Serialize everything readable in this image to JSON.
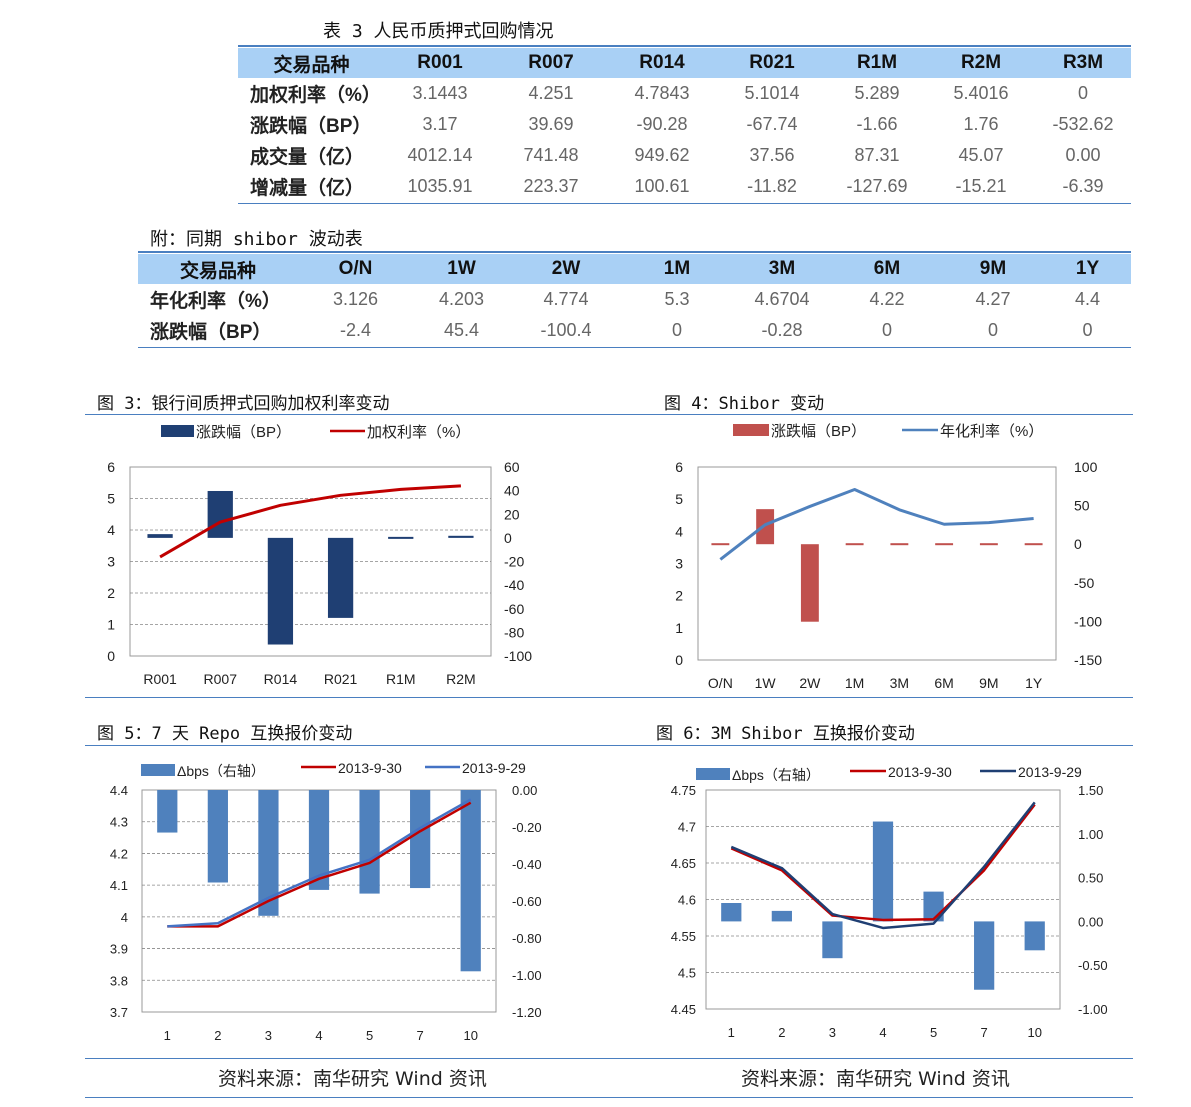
{
  "table3": {
    "caption": "表 3  人民币质押式回购情况",
    "headers": [
      "交易品种",
      "R001",
      "R007",
      "R014",
      "R021",
      "R1M",
      "R2M",
      "R3M"
    ],
    "rows": [
      [
        "加权利率（%）",
        "3.1443",
        "4.251",
        "4.7843",
        "5.1014",
        "5.289",
        "5.4016",
        "0"
      ],
      [
        "涨跌幅（BP）",
        "3.17",
        "39.69",
        "-90.28",
        "-67.74",
        "-1.66",
        "1.76",
        "-532.62"
      ],
      [
        "成交量（亿）",
        "4012.14",
        "741.48",
        "949.62",
        "37.56",
        "87.31",
        "45.07",
        "0.00"
      ],
      [
        "增减量（亿）",
        "1035.91",
        "223.37",
        "100.61",
        "-11.82",
        "-127.69",
        "-15.21",
        "-6.39"
      ]
    ]
  },
  "shibor_table": {
    "caption": "附：同期 shibor 波动表",
    "headers": [
      "交易品种",
      "O/N",
      "1W",
      "2W",
      "1M",
      "3M",
      "6M",
      "9M",
      "1Y"
    ],
    "rows": [
      [
        "年化利率（%）",
        "3.126",
        "4.203",
        "4.774",
        "5.3",
        "4.6704",
        "4.22",
        "4.27",
        "4.4"
      ],
      [
        "涨跌幅（BP）",
        "-2.4",
        "45.4",
        "-100.4",
        "0",
        "-0.28",
        "0",
        "0",
        "0"
      ]
    ]
  },
  "captions": {
    "fig3": "图 3：银行间质押式回购加权利率变动",
    "fig4": "图 4：Shibor 变动",
    "fig5": "图 5：7 天 Repo 互换报价变动",
    "fig6": "图 6：3M Shibor 互换报价变动"
  },
  "source": "资料来源：南华研究   Wind 资讯",
  "colors": {
    "header_bg": "#a9d0f5",
    "bar_navy": "#1f3f73",
    "bar_red": "#c0504d",
    "bar_blue": "#4f81bd",
    "line_red": "#c00000",
    "line_blue": "#4472c4"
  },
  "chart_data": [
    {
      "id": "fig3",
      "type": "bar+line",
      "categories": [
        "R001",
        "R007",
        "R014",
        "R021",
        "R1M",
        "R2M"
      ],
      "bar_series": {
        "name": "涨跌幅（BP）",
        "values": [
          3.17,
          39.69,
          -90.28,
          -67.74,
          -1.66,
          1.76
        ],
        "axis": "right"
      },
      "line_series": {
        "name": "加权利率（%）",
        "values": [
          3.1443,
          4.251,
          4.7843,
          5.1014,
          5.289,
          5.4016
        ],
        "axis": "left"
      },
      "left_ticks": [
        "6",
        "5",
        "4",
        "3",
        "2",
        "1",
        "0"
      ],
      "right_ticks": [
        "60",
        "40",
        "20",
        "0",
        "-20",
        "-40",
        "-60",
        "-80",
        "-100"
      ],
      "ylim_left": [
        0,
        6
      ],
      "ylim_right": [
        -100,
        60
      ],
      "grid": true,
      "legend": "top"
    },
    {
      "id": "fig4",
      "type": "bar+line",
      "categories": [
        "O/N",
        "1W",
        "2W",
        "1M",
        "3M",
        "6M",
        "9M",
        "1Y"
      ],
      "bar_series": {
        "name": "涨跌幅（BP）",
        "values": [
          -2.4,
          45.4,
          -100.4,
          0,
          -0.28,
          0,
          0,
          0
        ],
        "axis": "right"
      },
      "line_series": {
        "name": "年化利率（%）",
        "values": [
          3.126,
          4.203,
          4.774,
          5.3,
          4.6704,
          4.22,
          4.27,
          4.4
        ],
        "axis": "left"
      },
      "left_ticks": [
        "6",
        "5",
        "4",
        "3",
        "2",
        "1",
        "0"
      ],
      "right_ticks": [
        "100",
        "50",
        "0",
        "-50",
        "-100",
        "-150"
      ],
      "ylim_left": [
        0,
        6
      ],
      "ylim_right": [
        -150,
        100
      ],
      "grid": false,
      "legend": "top"
    },
    {
      "id": "fig5",
      "type": "bar+line",
      "categories": [
        "1",
        "2",
        "3",
        "4",
        "5",
        "7",
        "10"
      ],
      "bar_series": {
        "name": "Δbps（右轴）",
        "values": [
          -0.23,
          -0.5,
          -0.68,
          -0.54,
          -0.56,
          -0.53,
          -0.98
        ],
        "axis": "right"
      },
      "line_series": [
        {
          "name": "2013-9-30",
          "values": [
            3.97,
            3.97,
            4.05,
            4.12,
            4.17,
            4.27,
            4.36
          ],
          "axis": "left",
          "color": "#c00000"
        },
        {
          "name": "2013-9-29",
          "values": [
            3.97,
            3.98,
            4.06,
            4.13,
            4.18,
            4.28,
            4.37
          ],
          "axis": "left",
          "color": "#4472c4"
        }
      ],
      "left_ticks": [
        "4.4",
        "4.3",
        "4.2",
        "4.1",
        "4",
        "3.9",
        "3.8",
        "3.7"
      ],
      "right_ticks": [
        "0.00",
        "-0.20",
        "-0.40",
        "-0.60",
        "-0.80",
        "-1.00",
        "-1.20"
      ],
      "ylim_left": [
        3.7,
        4.4
      ],
      "ylim_right": [
        -1.2,
        0
      ],
      "grid": true,
      "legend": "top"
    },
    {
      "id": "fig6",
      "type": "bar+line",
      "categories": [
        "1",
        "2",
        "3",
        "4",
        "5",
        "7",
        "10"
      ],
      "bar_series": {
        "name": "Δbps（右轴）",
        "values": [
          0.21,
          0.12,
          -0.42,
          1.14,
          0.34,
          -0.78,
          -0.33
        ],
        "axis": "right"
      },
      "line_series": [
        {
          "name": "2013-9-30",
          "values": [
            4.67,
            4.64,
            4.578,
            4.572,
            4.573,
            4.64,
            4.73
          ],
          "axis": "left",
          "color": "#c00000"
        },
        {
          "name": "2013-9-29",
          "values": [
            4.672,
            4.643,
            4.58,
            4.561,
            4.567,
            4.645,
            4.733
          ],
          "axis": "left",
          "color": "#1f3f73"
        }
      ],
      "left_ticks": [
        "4.75",
        "4.7",
        "4.65",
        "4.6",
        "4.55",
        "4.5",
        "4.45"
      ],
      "right_ticks": [
        "1.50",
        "1.00",
        "0.50",
        "0.00",
        "-0.50",
        "-1.00"
      ],
      "ylim_left": [
        4.45,
        4.75
      ],
      "ylim_right": [
        -1.0,
        1.5
      ],
      "grid": true,
      "legend": "top"
    }
  ]
}
